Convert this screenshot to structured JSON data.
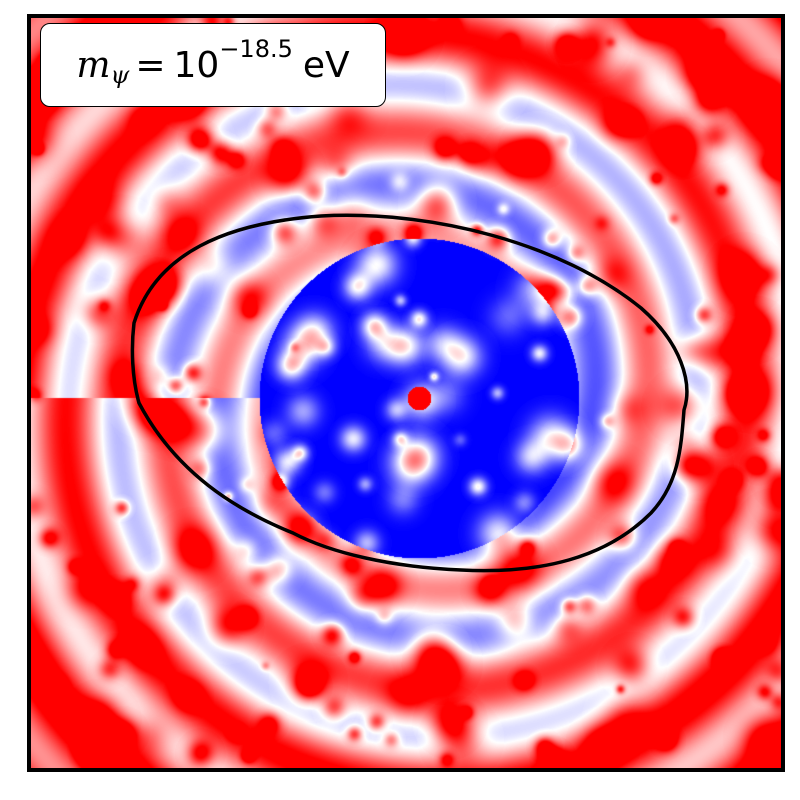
{
  "label": {
    "symbol": "m",
    "subscript": "ψ",
    "equals": "=",
    "base": "10",
    "exponent": "−18.5",
    "unit": "eV"
  },
  "colors": {
    "positive": "#ff0000",
    "negative": "#0000ff",
    "neutral": "#ffffff",
    "contour": "#000000",
    "frame": "#000000"
  },
  "colormap": "bwr",
  "contour": {
    "shape": "closed-ellipse-like",
    "tilt_degrees": 10
  }
}
